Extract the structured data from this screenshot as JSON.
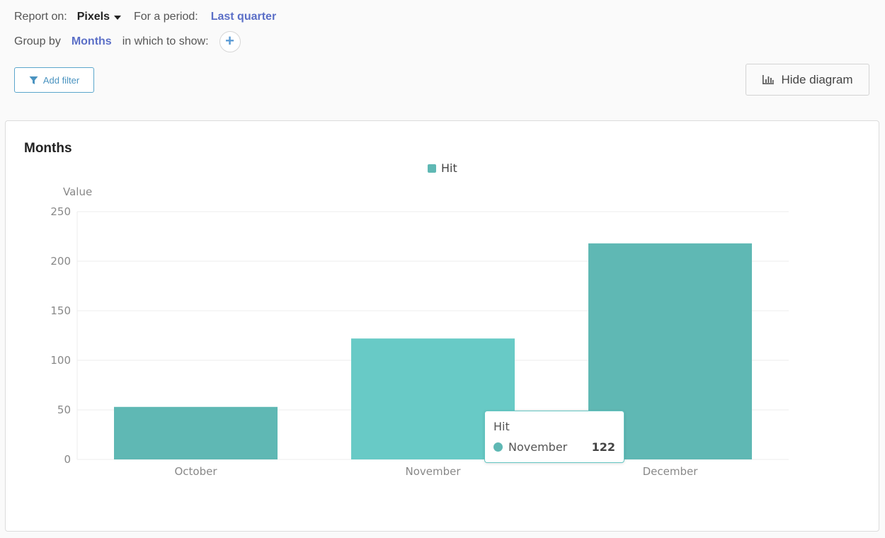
{
  "controls": {
    "report_on_label": "Report on:",
    "metric": "Pixels",
    "period_label": "For a period:",
    "period_value": "Last quarter",
    "group_by_label": "Group by",
    "group_by_value": "Months",
    "show_in_label": "in which to show:",
    "add_filter_label": "Add filter",
    "hide_diagram_label": "Hide diagram"
  },
  "card": {
    "title": "Months"
  },
  "tooltip": {
    "series": "Hit",
    "category": "November",
    "value": "122",
    "dot_color": "#5fb8b4"
  },
  "colors": {
    "bar": "#5fb8b4",
    "bar_hover": "#68cac6",
    "axis_text": "#888888",
    "grid": "#eeeeee"
  },
  "chart_data": {
    "type": "bar",
    "categories": [
      "October",
      "November",
      "December"
    ],
    "series": [
      {
        "name": "Hit",
        "values": [
          53,
          122,
          218
        ]
      }
    ],
    "ylabel": "Value",
    "ylim": [
      0,
      250
    ],
    "yticks": [
      0,
      50,
      100,
      150,
      200,
      250
    ],
    "grid": true,
    "legend": "top-center",
    "highlighted_category": "November"
  }
}
